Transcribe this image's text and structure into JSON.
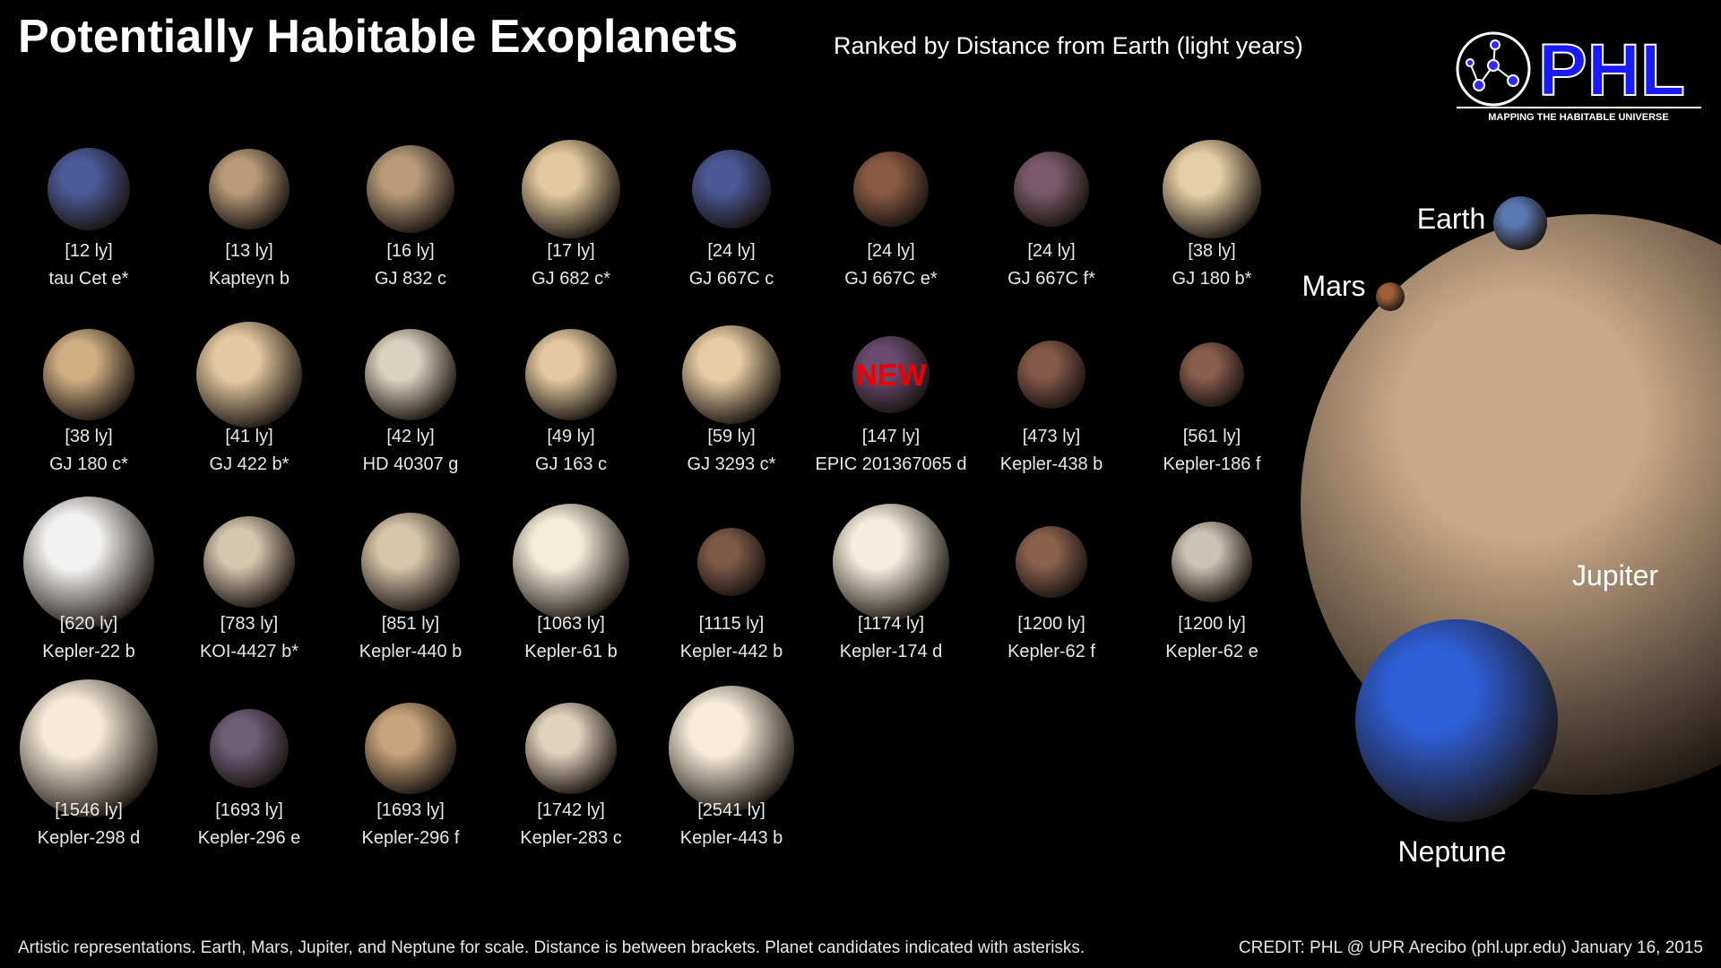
{
  "header": {
    "title": "Potentially Habitable Exoplanets",
    "subtitle": "Ranked by Distance from Earth (light years)",
    "logo": {
      "text": "PHL",
      "tagline": "MAPPING THE HABITABLE UNIVERSE"
    }
  },
  "planets": [
    {
      "distance": "[12 ly]",
      "name": "tau Cet e*",
      "color": "#4b5a98"
    },
    {
      "distance": "[13 ly]",
      "name": "Kapteyn b",
      "color": "#b89a78"
    },
    {
      "distance": "[16 ly]",
      "name": "GJ 832 c",
      "color": "#b89a7a"
    },
    {
      "distance": "[17 ly]",
      "name": "GJ 682 c*",
      "color": "#e2c89c"
    },
    {
      "distance": "[24 ly]",
      "name": "GJ 667C c",
      "color": "#4a5896"
    },
    {
      "distance": "[24 ly]",
      "name": "GJ 667C e*",
      "color": "#8a5a44"
    },
    {
      "distance": "[24 ly]",
      "name": "GJ 667C f*",
      "color": "#7a5a6a"
    },
    {
      "distance": "[38 ly]",
      "name": "GJ 180 b*",
      "color": "#e6cea4"
    },
    {
      "distance": "[38 ly]",
      "name": "GJ 180 c*",
      "color": "#cfae82"
    },
    {
      "distance": "[41 ly]",
      "name": "GJ 422 b*",
      "color": "#e4c8a0"
    },
    {
      "distance": "[42 ly]",
      "name": "HD 40307 g",
      "color": "#dcd2c0"
    },
    {
      "distance": "[49 ly]",
      "name": "GJ 163 c",
      "color": "#e4c9a0"
    },
    {
      "distance": "[59 ly]",
      "name": "GJ 3293 c*",
      "color": "#e6cba2"
    },
    {
      "distance": "[147 ly]",
      "name": "EPIC 201367065 d",
      "color": "#6a4a70",
      "badge": "NEW"
    },
    {
      "distance": "[473 ly]",
      "name": "Kepler-438 b",
      "color": "#85594a"
    },
    {
      "distance": "[561 ly]",
      "name": "Kepler-186 f",
      "color": "#8a5e4e"
    },
    {
      "distance": "[620 ly]",
      "name": "Kepler-22 b",
      "color": "#f2f2f2"
    },
    {
      "distance": "[783 ly]",
      "name": "KOI-4427 b*",
      "color": "#d6c6ae"
    },
    {
      "distance": "[851 ly]",
      "name": "Kepler-440 b",
      "color": "#d8c6aa"
    },
    {
      "distance": "[1063 ly]",
      "name": "Kepler-61 b",
      "color": "#f5ecd8"
    },
    {
      "distance": "[1115 ly]",
      "name": "Kepler-442 b",
      "color": "#7e5a48"
    },
    {
      "distance": "[1174 ly]",
      "name": "Kepler-174 d",
      "color": "#f6eedc"
    },
    {
      "distance": "[1200 ly]",
      "name": "Kepler-62 f",
      "color": "#8a604e"
    },
    {
      "distance": "[1200 ly]",
      "name": "Kepler-62 e",
      "color": "#cec4b4"
    },
    {
      "distance": "[1546 ly]",
      "name": "Kepler-298 d",
      "color": "#f5ead6"
    },
    {
      "distance": "[1693 ly]",
      "name": "Kepler-296 e",
      "color": "#6e5e78"
    },
    {
      "distance": "[1693 ly]",
      "name": "Kepler-296 f",
      "color": "#c8a47c"
    },
    {
      "distance": "[1742 ly]",
      "name": "Kepler-283 c",
      "color": "#e0d2bc"
    },
    {
      "distance": "[2541 ly]",
      "name": "Kepler-443 b",
      "color": "#f6ecd8"
    }
  ],
  "scale_planets": [
    {
      "name": "Jupiter",
      "color": "#c9a888"
    },
    {
      "name": "Earth",
      "color": "#5a78b0"
    },
    {
      "name": "Mars",
      "color": "#a0603a"
    },
    {
      "name": "Neptune",
      "color": "#2f5fd8"
    }
  ],
  "footer": {
    "note": "Artistic representations. Earth, Mars, Jupiter, and Neptune for scale. Distance is between brackets. Planet candidates indicated with asterisks.",
    "credit": "CREDIT:  PHL @ UPR Arecibo (phl.upr.edu)  January 16, 2015"
  }
}
